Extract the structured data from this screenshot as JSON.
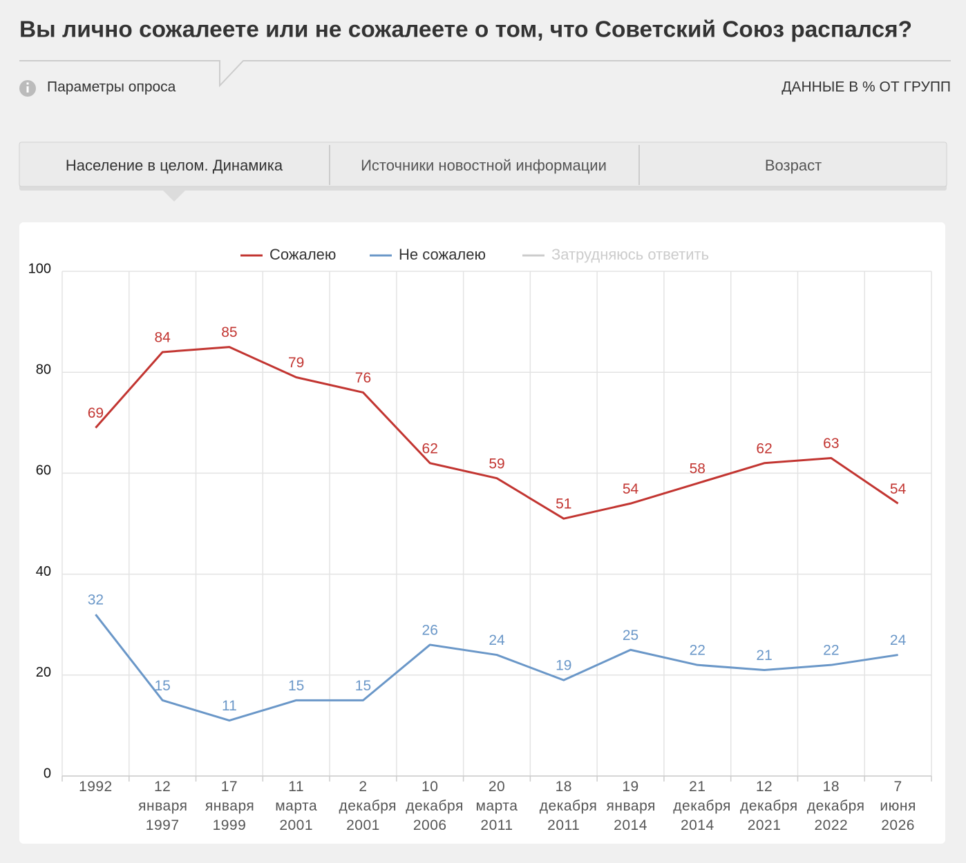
{
  "title": "Вы лично сожалеете или не сожалеете о том, что Советский Союз распался?",
  "params_label": "Параметры опроса",
  "units_note": "ДАННЫЕ В % ОТ ГРУПП",
  "tabs": [
    "Население в целом. Динамика",
    "Источники новостной информации",
    "Возраст"
  ],
  "chart_data": {
    "type": "line",
    "categories": [
      "1992",
      "12 января 1997",
      "17 января 1999",
      "11 марта 2001",
      "2 декабря 2001",
      "10 декабря 2006",
      "20 марта 2011",
      "18 декабря 2011",
      "19 января 2014",
      "21 декабря 2014",
      "12 декабря 2021",
      "18 декабря 2022",
      "7 июня 2026"
    ],
    "series": [
      {
        "name": "Сожалею",
        "color": "#c23531",
        "values": [
          69,
          84,
          85,
          79,
          76,
          62,
          59,
          51,
          54,
          58,
          62,
          63,
          54
        ]
      },
      {
        "name": "Не сожалею",
        "color": "#6a97c8",
        "values": [
          32,
          15,
          11,
          15,
          15,
          26,
          24,
          19,
          25,
          22,
          21,
          22,
          24
        ]
      }
    ],
    "legend_inactive": {
      "name": "Затрудняюсь ответить",
      "color": "#cccccc"
    },
    "ylim": [
      0,
      100
    ],
    "yticks": [
      0,
      20,
      40,
      60,
      80,
      100
    ],
    "grid": true
  }
}
